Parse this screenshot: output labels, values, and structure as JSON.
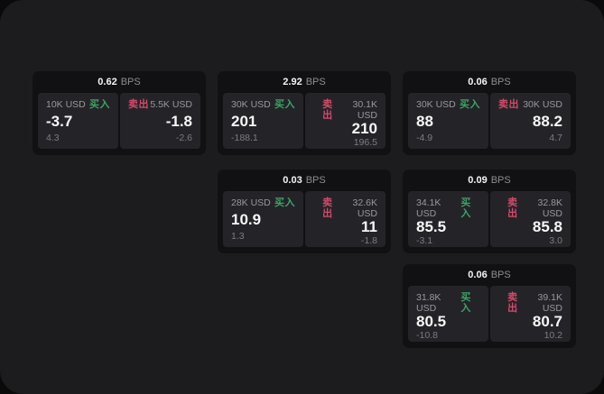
{
  "theme": {
    "colors": {
      "window-bg": "#1c1c1e",
      "card-bg": "#111113",
      "panel-bg": "#242428",
      "buy-green": "#3ca465",
      "sell-rose": "#d44a6a",
      "label-text": "#98989d",
      "faint-text": "#7c7c80",
      "dim-text": "#8e8e93"
    }
  },
  "labels": {
    "bps": "BPS",
    "buy": "买入",
    "sell": "卖出"
  },
  "cards": [
    {
      "row": 1,
      "col": 1,
      "bps": "0.62",
      "buy": {
        "amount": "10K USD",
        "value": "-3.7",
        "delta": "4.3"
      },
      "sell": {
        "amount": "5.5K USD",
        "value": "-1.8",
        "delta": "-2.6"
      }
    },
    {
      "row": 1,
      "col": 2,
      "bps": "2.92",
      "buy": {
        "amount": "30K USD",
        "value": "201",
        "delta": "-188.1"
      },
      "sell": {
        "amount": "30.1K USD",
        "value": "210",
        "delta": "196.5"
      }
    },
    {
      "row": 1,
      "col": 3,
      "bps": "0.06",
      "buy": {
        "amount": "30K USD",
        "value": "88",
        "delta": "-4.9"
      },
      "sell": {
        "amount": "30K USD",
        "value": "88.2",
        "delta": "4.7"
      }
    },
    {
      "row": 2,
      "col": 2,
      "bps": "0.03",
      "buy": {
        "amount": "28K USD",
        "value": "10.9",
        "delta": "1.3"
      },
      "sell": {
        "amount": "32.6K USD",
        "value": "11",
        "delta": "-1.8"
      }
    },
    {
      "row": 2,
      "col": 3,
      "bps": "0.09",
      "buy": {
        "amount": "34.1K USD",
        "value": "85.5",
        "delta": "-3.1"
      },
      "sell": {
        "amount": "32.8K USD",
        "value": "85.8",
        "delta": "3.0"
      }
    },
    {
      "row": 3,
      "col": 3,
      "bps": "0.06",
      "buy": {
        "amount": "31.8K USD",
        "value": "80.5",
        "delta": "-10.8"
      },
      "sell": {
        "amount": "39.1K USD",
        "value": "80.7",
        "delta": "10.2"
      }
    }
  ]
}
